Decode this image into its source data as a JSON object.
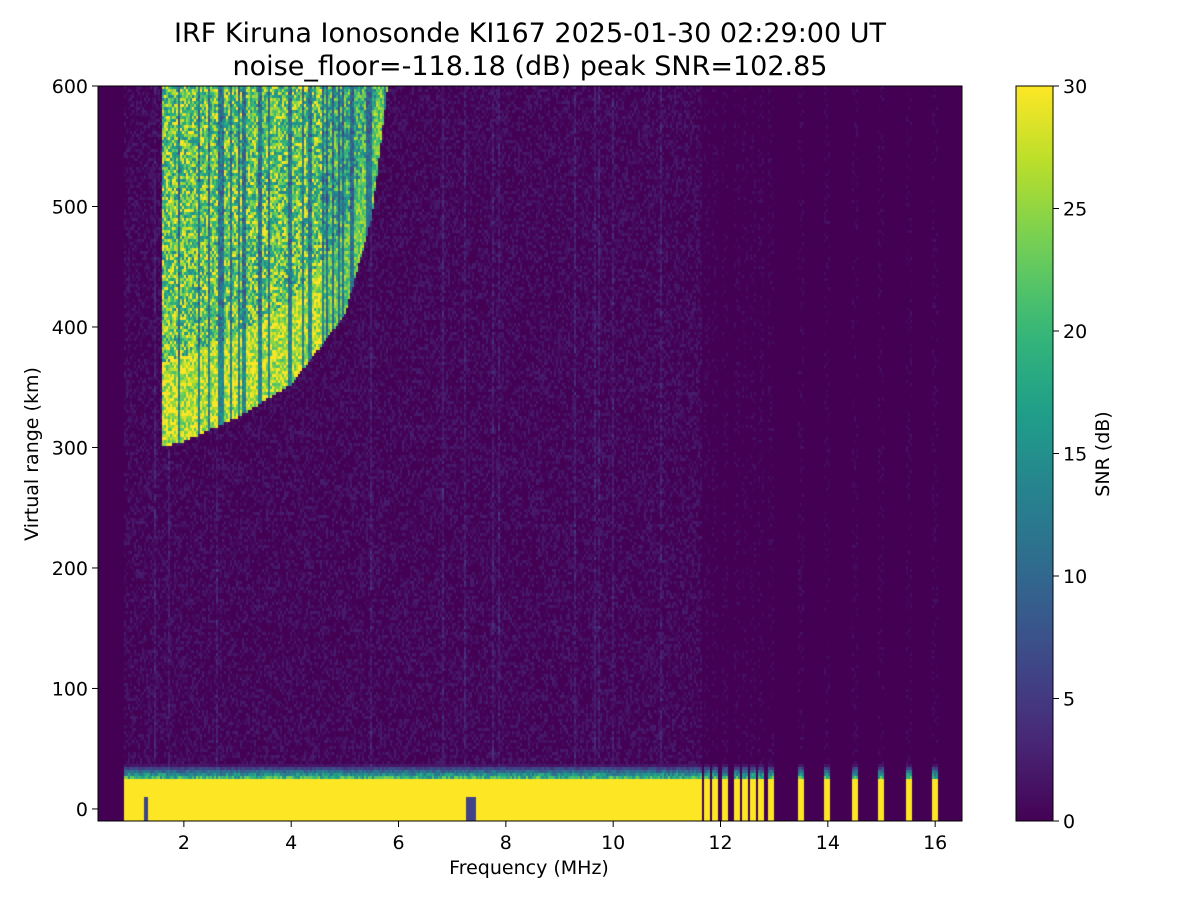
{
  "chart_data": {
    "type": "heatmap",
    "title": "IRF Kiruna Ionosonde KI167 2025-01-30 02:29:00  UT",
    "subtitle": "noise_floor=-118.18 (dB) peak SNR=102.85",
    "xlabel": "Frequency (MHz)",
    "ylabel": "Virtual range (km)",
    "colorbar_label": "SNR (dB)",
    "colormap": "viridis",
    "xlim": [
      0.4,
      16.5
    ],
    "ylim": [
      -10,
      600
    ],
    "clim": [
      0,
      30
    ],
    "x_ticks": [
      2,
      4,
      6,
      8,
      10,
      12,
      14,
      16
    ],
    "y_ticks": [
      0,
      100,
      200,
      300,
      400,
      500,
      600
    ],
    "colorbar_ticks": [
      0,
      5,
      10,
      15,
      20,
      25,
      30
    ],
    "data_frequency_range_mhz": [
      0.9,
      16.3
    ],
    "features": {
      "f_trace": {
        "description_points": [
          {
            "freq_mhz": 1.6,
            "min_range_km": 300
          },
          {
            "freq_mhz": 2.0,
            "min_range_km": 305
          },
          {
            "freq_mhz": 3.0,
            "min_range_km": 325
          },
          {
            "freq_mhz": 4.0,
            "min_range_km": 352
          },
          {
            "freq_mhz": 5.0,
            "min_range_km": 410
          },
          {
            "freq_mhz": 5.5,
            "min_range_km": 490
          },
          {
            "freq_mhz": 5.8,
            "min_range_km": 600
          }
        ],
        "peak_snr_db": 30
      },
      "ground_clutter_range_km": [
        -10,
        25
      ],
      "discrete_channels_mhz": [
        11.75,
        11.9,
        12.1,
        12.3,
        12.45,
        12.6,
        12.75,
        12.95,
        13.5,
        14.0,
        14.5,
        15.0,
        15.5,
        16.0
      ]
    }
  }
}
